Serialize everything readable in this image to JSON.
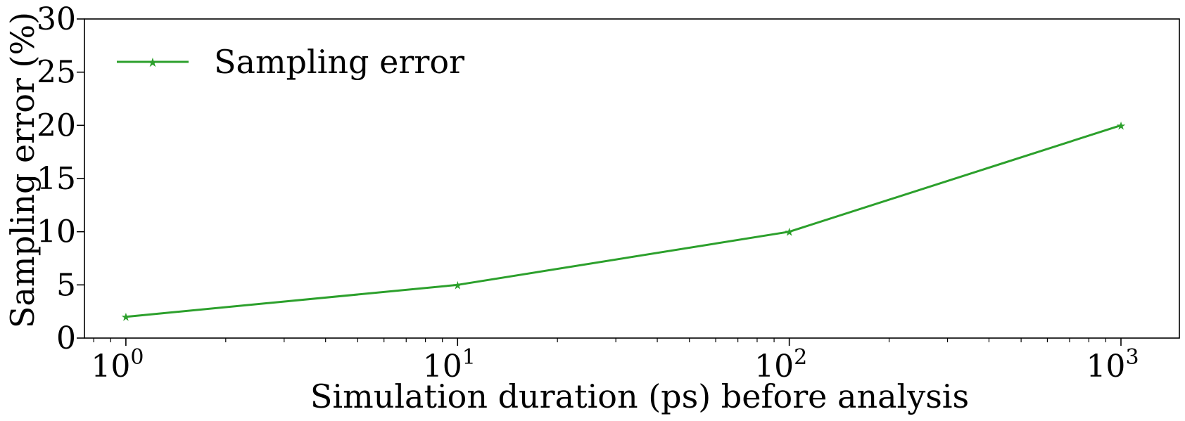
{
  "chart_data": {
    "type": "line",
    "xscale": "log",
    "xlabel": "Simulation duration (ps) before analysis",
    "ylabel": "Sampling error (%)",
    "xlim": [
      0.75,
      1500
    ],
    "ylim": [
      0,
      30
    ],
    "xticks": [
      {
        "value": 1,
        "base": "10",
        "exp": "0"
      },
      {
        "value": 10,
        "base": "10",
        "exp": "1"
      },
      {
        "value": 100,
        "base": "10",
        "exp": "2"
      },
      {
        "value": 1000,
        "base": "10",
        "exp": "3"
      }
    ],
    "yticks": [
      0,
      5,
      10,
      15,
      20,
      25,
      30
    ],
    "series": [
      {
        "name": "Sampling error",
        "color": "#2ca02c",
        "marker": "star",
        "x": [
          1,
          10,
          100,
          1000
        ],
        "y": [
          2,
          5,
          10,
          20
        ]
      }
    ],
    "legend": {
      "position": "top-left"
    },
    "grid": false
  }
}
